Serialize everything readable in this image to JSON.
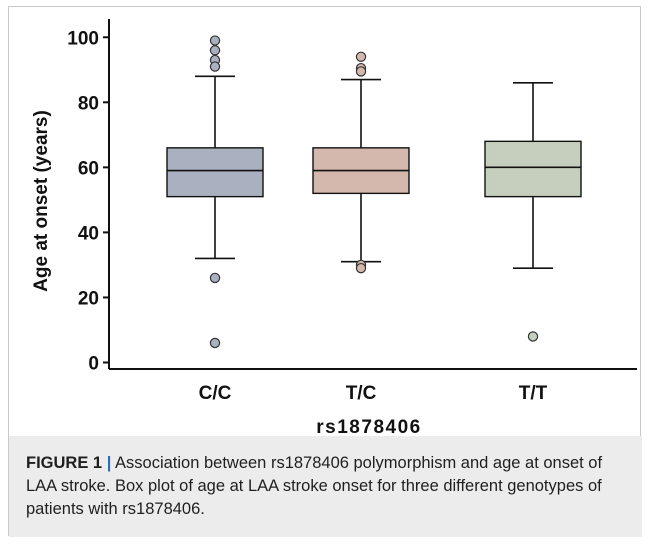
{
  "chart_data": {
    "type": "box",
    "xlabel": "rs1878406",
    "ylabel": "Age at onset (years)",
    "ylim": [
      -2,
      105
    ],
    "yticks": [
      0,
      20,
      40,
      60,
      80,
      100
    ],
    "categories": [
      "C/C",
      "T/C",
      "T/T"
    ],
    "colors": [
      "#a9b1c0",
      "#d4b8ae",
      "#c6cfbd"
    ],
    "boxes": [
      {
        "category": "C/C",
        "whisker_low": 32,
        "q1": 51,
        "median": 59,
        "q3": 66,
        "whisker_high": 88,
        "outliers": [
          99,
          96,
          93,
          91,
          26,
          6
        ]
      },
      {
        "category": "T/C",
        "whisker_low": 31,
        "q1": 52,
        "median": 59,
        "q3": 66,
        "whisker_high": 87,
        "outliers": [
          94,
          90.5,
          89.5,
          30,
          29
        ]
      },
      {
        "category": "T/T",
        "whisker_low": 29,
        "q1": 51,
        "median": 60,
        "q3": 68,
        "whisker_high": 86,
        "outliers": [
          8
        ]
      }
    ]
  },
  "caption": {
    "label": "FIGURE 1",
    "separator": "|",
    "text": "Association between rs1878406 polymorphism and age at onset of LAA stroke. Box plot of age at LAA stroke onset for three different genotypes of patients with rs1878406."
  }
}
